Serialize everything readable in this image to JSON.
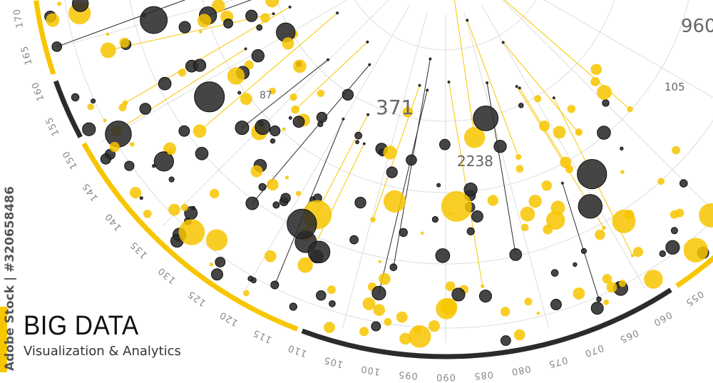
{
  "title": "BIG DATA",
  "subtitle": "Visualization & Analytics",
  "watermark": "Adobe Stock | #320658486",
  "colors": {
    "yellow": "#f7c600",
    "dark": "#2b2b2b",
    "grid": "#dddddd",
    "tick_text": "#888888"
  },
  "scale_labels": [
    "170",
    "165",
    "160",
    "155",
    "150",
    "145",
    "140",
    "135",
    "130",
    "125",
    "120",
    "115",
    "110",
    "105",
    "100",
    "095",
    "090",
    "085",
    "080",
    "075",
    "070",
    "065",
    "060",
    "055"
  ],
  "ring_segments": [
    {
      "from": 172,
      "to": 161.5,
      "color": "yellow"
    },
    {
      "from": 160.5,
      "to": 152,
      "color": "dark"
    },
    {
      "from": 151,
      "to": 111,
      "color": "yellow"
    },
    {
      "from": 110.3,
      "to": 57,
      "color": "dark"
    },
    {
      "from": 56,
      "to": 40,
      "color": "yellow"
    }
  ],
  "annotations": [
    "371",
    "2238",
    "87",
    "105",
    "960"
  ]
}
